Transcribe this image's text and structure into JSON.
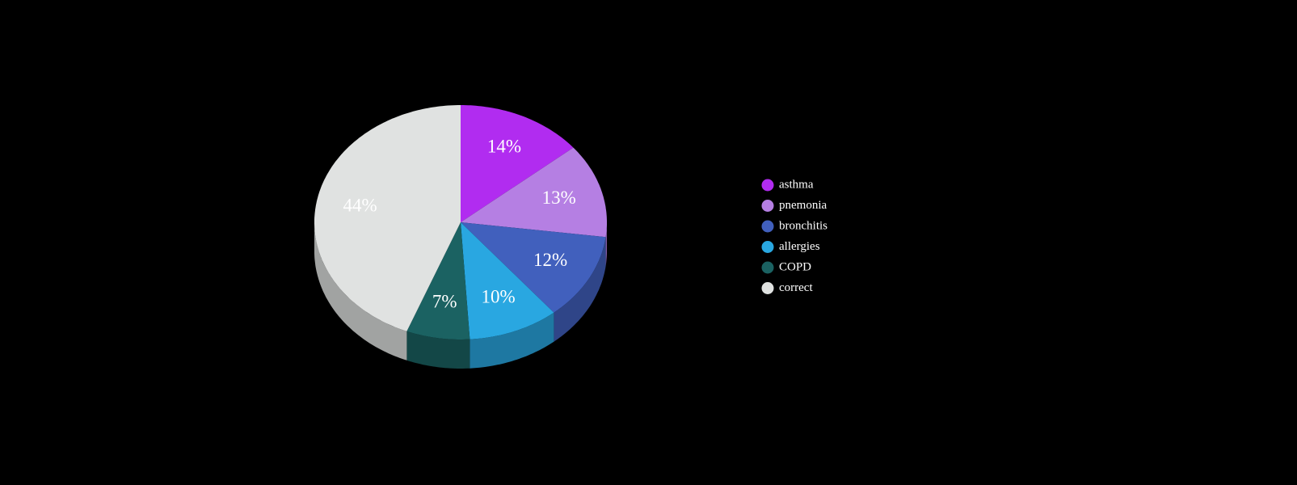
{
  "chart_data": {
    "type": "pie3d",
    "categories": [
      "asthma",
      "pnemonia",
      "bronchitis",
      "allergies",
      "COPD",
      "correct"
    ],
    "values": [
      14,
      13,
      12,
      10,
      7,
      44
    ],
    "value_labels": [
      "14%",
      "13%",
      "12%",
      "10%",
      "7%",
      "44%"
    ],
    "colors": [
      "#b12cf0",
      "#b57fe3",
      "#4160bd",
      "#29a7e1",
      "#1b6262",
      "#e0e2e1"
    ],
    "legend": "right"
  }
}
